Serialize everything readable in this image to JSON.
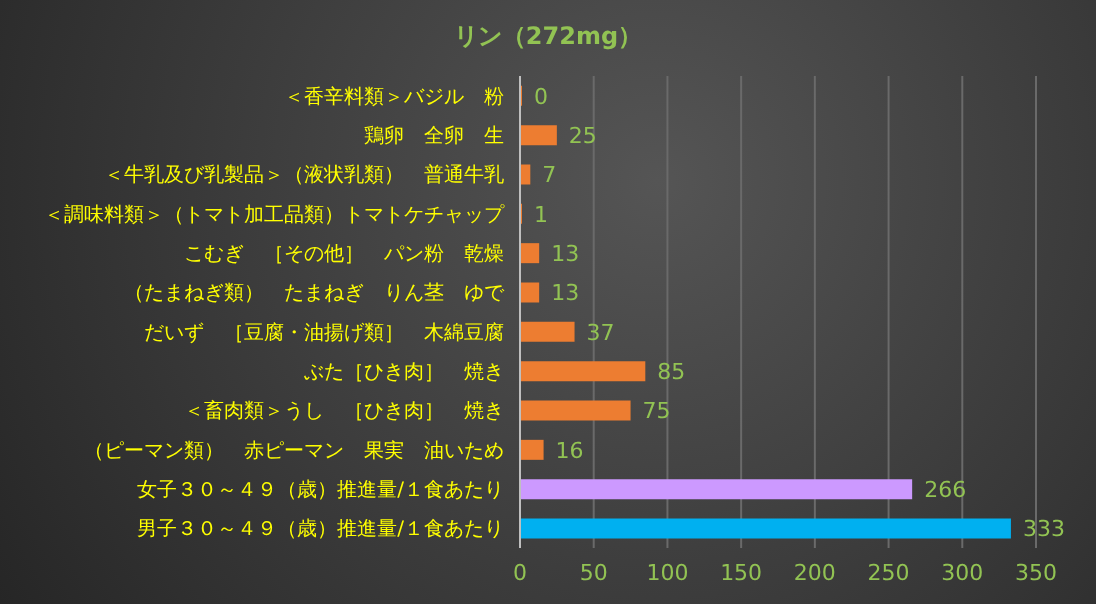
{
  "chart_data": {
    "type": "bar",
    "orientation": "horizontal",
    "title": "リン（272mg）",
    "categories": [
      "＜香辛料類＞バジル　粉",
      "鶏卵　全卵　生",
      "＜牛乳及び乳製品＞（液状乳類）　普通牛乳",
      "＜調味料類＞（トマト加工品類）トマトケチャップ",
      "こむぎ　［その他］　パン粉　乾燥",
      "（たまねぎ類）　たまねぎ　りん茎　ゆで",
      "だいず　［豆腐・油揚げ類］　木綿豆腐",
      "ぶた［ひき肉］　焼き",
      "＜畜肉類＞うし　［ひき肉］　焼き",
      "（ピーマン類）　赤ピーマン　果実　油いため",
      "女子３０～４９（歳）推進量/１食あたり",
      "男子３０～４９（歳）推進量/１食あたり"
    ],
    "values": [
      0,
      25,
      7,
      1,
      13,
      13,
      37,
      85,
      75,
      16,
      266,
      333
    ],
    "colors": [
      "#ed7d31",
      "#ed7d31",
      "#ed7d31",
      "#ed7d31",
      "#ed7d31",
      "#ed7d31",
      "#ed7d31",
      "#ed7d31",
      "#ed7d31",
      "#ed7d31",
      "#cc99ff",
      "#00b0f0"
    ],
    "xlim": [
      0,
      350
    ],
    "xticks": [
      0,
      50,
      100,
      150,
      200,
      250,
      300,
      350
    ],
    "grid": "x",
    "data_labels": true
  }
}
